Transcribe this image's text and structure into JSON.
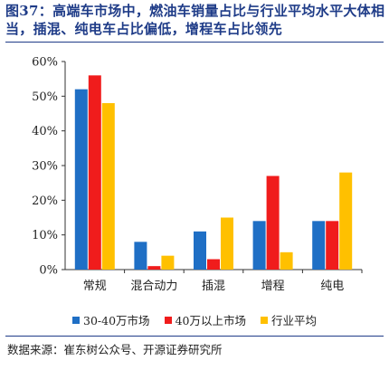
{
  "header": {
    "title": "图37：高端车市场中，燃油车销量占比与行业平均水平大体相当，插混、纯电车占比偏低，增程车占比领先"
  },
  "chart_data": {
    "type": "bar",
    "categories": [
      "常规",
      "混合动力",
      "插混",
      "增程",
      "纯电"
    ],
    "series": [
      {
        "name": "30-40万市场",
        "values": [
          52,
          8,
          11,
          14,
          14
        ],
        "color": "#1f6fc5"
      },
      {
        "name": "40万以上市场",
        "values": [
          56,
          1,
          3,
          27,
          14
        ],
        "color": "#f01c1c"
      },
      {
        "name": "行业平均",
        "values": [
          48,
          4,
          15,
          5,
          28
        ],
        "color": "#ffc000"
      }
    ],
    "ylim": [
      0,
      60
    ],
    "yticks": [
      "0%",
      "10%",
      "20%",
      "30%",
      "40%",
      "50%",
      "60%"
    ],
    "ytick_values": [
      0,
      10,
      20,
      30,
      40,
      50,
      60
    ],
    "grid": false,
    "legend_position": "bottom"
  },
  "footer": {
    "source": "数据来源：崔东树公众号、开源证券研究所"
  }
}
